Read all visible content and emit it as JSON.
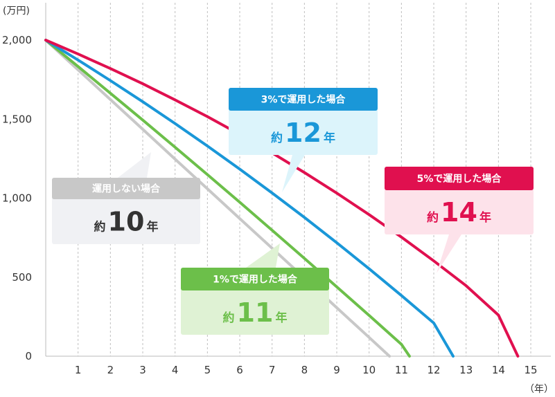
{
  "chart_data": {
    "type": "line",
    "y_unit": "(万円)",
    "x_unit": "（年）",
    "xlim": [
      0,
      15
    ],
    "ylim": [
      0,
      2000
    ],
    "x_ticks": [
      "1",
      "2",
      "3",
      "4",
      "5",
      "6",
      "7",
      "8",
      "9",
      "10",
      "11",
      "12",
      "13",
      "14",
      "15"
    ],
    "y_ticks": [
      "0",
      "500",
      "1,000",
      "1,500",
      "2,000"
    ],
    "grid": {
      "vertical": "dashed",
      "horizontal": false
    },
    "series": [
      {
        "id": "none",
        "name": "運用しない場合",
        "color": "#c8c8c8",
        "label_color": "#333333",
        "box_color": "#f0f1f4",
        "result_prefix": "約",
        "result_number": "10",
        "result_suffix": "年",
        "points": [
          [
            0,
            2000
          ],
          [
            1,
            1812
          ],
          [
            2,
            1624
          ],
          [
            3,
            1436
          ],
          [
            4,
            1247
          ],
          [
            5,
            1059
          ],
          [
            6,
            871
          ],
          [
            7,
            683
          ],
          [
            8,
            495
          ],
          [
            9,
            307
          ],
          [
            10,
            119
          ],
          [
            10.63,
            0
          ]
        ]
      },
      {
        "id": "r1",
        "name": "1%で運用した場合",
        "color": "#6cbf4a",
        "label_color": "#6cbf4a",
        "box_color": "#dff2d4",
        "result_prefix": "約",
        "result_number": "11",
        "result_suffix": "年",
        "points": [
          [
            0,
            2000
          ],
          [
            1,
            1833
          ],
          [
            2,
            1664
          ],
          [
            3,
            1494
          ],
          [
            4,
            1322
          ],
          [
            5,
            1149
          ],
          [
            6,
            974
          ],
          [
            7,
            797
          ],
          [
            8,
            619
          ],
          [
            9,
            439
          ],
          [
            10,
            258
          ],
          [
            11,
            75
          ],
          [
            11.25,
            0
          ]
        ]
      },
      {
        "id": "r3",
        "name": "3%で運用した場合",
        "color": "#1a97d8",
        "label_color": "#1a97d8",
        "box_color": "#dcf4fb",
        "result_prefix": "約",
        "result_number": "12",
        "result_suffix": "年",
        "points": [
          [
            0,
            2000
          ],
          [
            1,
            1874
          ],
          [
            2,
            1744
          ],
          [
            3,
            1610
          ],
          [
            4,
            1472
          ],
          [
            5,
            1330
          ],
          [
            6,
            1184
          ],
          [
            7,
            1033
          ],
          [
            8,
            878
          ],
          [
            9,
            718
          ],
          [
            10,
            553
          ],
          [
            11,
            384
          ],
          [
            12,
            210
          ],
          [
            12.6,
            0
          ]
        ]
      },
      {
        "id": "r5",
        "name": "5%で運用した場合",
        "color": "#e0104f",
        "label_color": "#e0104f",
        "box_color": "#fde2ea",
        "result_prefix": "約",
        "result_number": "14",
        "result_suffix": "年",
        "points": [
          [
            0,
            2000
          ],
          [
            1,
            1912
          ],
          [
            2,
            1820
          ],
          [
            3,
            1724
          ],
          [
            4,
            1622
          ],
          [
            5,
            1516
          ],
          [
            6,
            1404
          ],
          [
            7,
            1286
          ],
          [
            8,
            1162
          ],
          [
            9,
            1032
          ],
          [
            10,
            896
          ],
          [
            11,
            753
          ],
          [
            12,
            603
          ],
          [
            13,
            446
          ],
          [
            14,
            260
          ],
          [
            14.6,
            0
          ]
        ]
      }
    ]
  }
}
